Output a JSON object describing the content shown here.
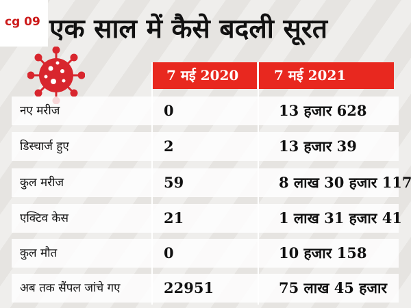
{
  "badge": "cg 09",
  "headline": "एक साल में कैसे बदली सूरत",
  "accent_color": "#e8281f",
  "icon": "coronavirus-icon",
  "table": {
    "columns": [
      "7 मई 2020",
      "7 मई 2021"
    ],
    "rows": [
      {
        "label": "नए मरीज",
        "v2020": "0",
        "v2021": "13 हजार 628"
      },
      {
        "label": "डिस्चार्ज हुए",
        "v2020": "2",
        "v2021": "13 हजार 39"
      },
      {
        "label": "कुल मरीज",
        "v2020": "59",
        "v2021": "8 लाख 30 हजार 117"
      },
      {
        "label": "एक्टिव केस",
        "v2020": "21",
        "v2021": "1 लाख 31 हजार 41"
      },
      {
        "label": "कुल मौत",
        "v2020": "0",
        "v2021": "10 हजार 158"
      },
      {
        "label": "अब तक सैंपल जांचे गए",
        "v2020": "22951",
        "v2021": "75 लाख 45 हजार"
      }
    ]
  }
}
